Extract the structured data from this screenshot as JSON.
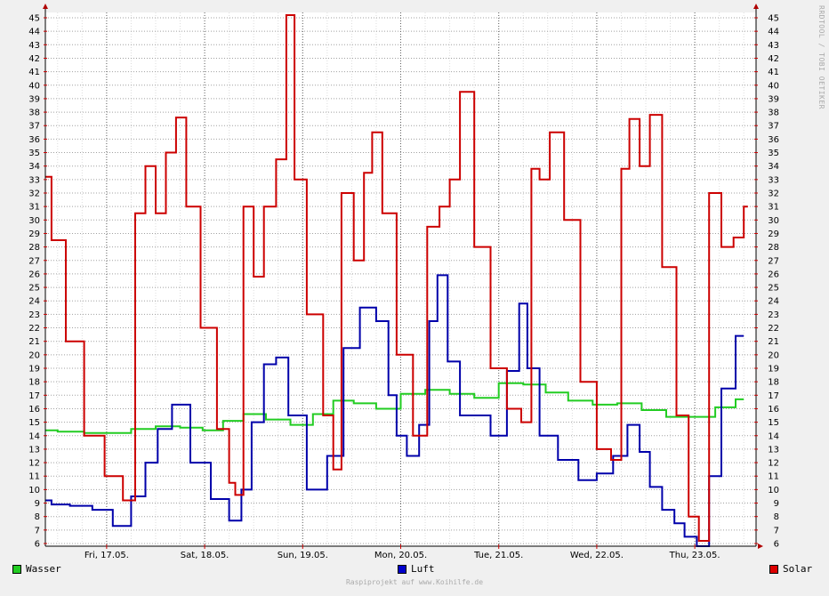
{
  "chart_data": {
    "type": "line",
    "ylim": [
      6,
      45
    ],
    "y_ticks": [
      6,
      7,
      8,
      9,
      10,
      11,
      12,
      13,
      14,
      15,
      16,
      17,
      18,
      19,
      20,
      21,
      22,
      23,
      24,
      25,
      26,
      27,
      28,
      29,
      30,
      31,
      32,
      33,
      34,
      35,
      36,
      37,
      38,
      39,
      40,
      41,
      42,
      43,
      44,
      45
    ],
    "x_range": [
      "2019-05-16T09:00",
      "2019-05-23T15:00"
    ],
    "x_ticks": [
      {
        "label": "Fri, 17.05.",
        "time": "2019-05-17T00:00"
      },
      {
        "label": "Sat, 18.05.",
        "time": "2019-05-18T00:00"
      },
      {
        "label": "Sun, 19.05.",
        "time": "2019-05-19T00:00"
      },
      {
        "label": "Mon, 20.05.",
        "time": "2019-05-20T00:00"
      },
      {
        "label": "Tue, 21.05.",
        "time": "2019-05-21T00:00"
      },
      {
        "label": "Wed, 22.05.",
        "time": "2019-05-22T00:00"
      },
      {
        "label": "Thu, 23.05.",
        "time": "2019-05-23T00:00"
      }
    ],
    "grid": true,
    "legend_position": "bottom",
    "series": [
      {
        "name": "Wasser",
        "color": "#22cc22",
        "x": [
          "2019-05-16T09:00",
          "2019-05-16T15:00",
          "2019-05-16T22:00",
          "2019-05-17T03:00",
          "2019-05-17T09:00",
          "2019-05-17T15:00",
          "2019-05-17T21:00",
          "2019-05-18T02:00",
          "2019-05-18T07:00",
          "2019-05-18T12:00",
          "2019-05-18T18:00",
          "2019-05-19T00:00",
          "2019-05-19T05:00",
          "2019-05-19T10:00",
          "2019-05-19T15:00",
          "2019-05-19T21:00",
          "2019-05-20T03:00",
          "2019-05-20T09:00",
          "2019-05-20T15:00",
          "2019-05-20T21:00",
          "2019-05-21T03:00",
          "2019-05-21T09:00",
          "2019-05-21T14:00",
          "2019-05-21T20:00",
          "2019-05-22T02:00",
          "2019-05-22T08:00",
          "2019-05-22T14:00",
          "2019-05-22T20:00",
          "2019-05-23T02:00",
          "2019-05-23T08:00",
          "2019-05-23T12:00"
        ],
        "values": [
          14.4,
          14.3,
          14.2,
          14.2,
          14.5,
          14.7,
          14.6,
          14.4,
          15.1,
          15.6,
          15.2,
          14.8,
          15.6,
          16.6,
          16.4,
          16.0,
          17.1,
          17.4,
          17.1,
          16.8,
          17.9,
          17.8,
          17.2,
          16.6,
          16.3,
          16.4,
          15.9,
          15.4,
          15.4,
          16.1,
          16.7
        ]
      },
      {
        "name": "Luft",
        "color": "#0000aa",
        "x": [
          "2019-05-16T09:00",
          "2019-05-16T12:00",
          "2019-05-16T18:00",
          "2019-05-16T23:00",
          "2019-05-17T04:00",
          "2019-05-17T08:00",
          "2019-05-17T11:00",
          "2019-05-17T14:00",
          "2019-05-17T18:00",
          "2019-05-17T23:00",
          "2019-05-18T04:00",
          "2019-05-18T08:00",
          "2019-05-18T10:00",
          "2019-05-18T13:00",
          "2019-05-18T16:00",
          "2019-05-18T19:00",
          "2019-05-18T22:00",
          "2019-05-19T04:00",
          "2019-05-19T08:00",
          "2019-05-19T12:00",
          "2019-05-19T16:00",
          "2019-05-19T20:00",
          "2019-05-19T22:00",
          "2019-05-20T00:00",
          "2019-05-20T03:00",
          "2019-05-20T06:00",
          "2019-05-20T08:00",
          "2019-05-20T10:00",
          "2019-05-20T13:00",
          "2019-05-20T16:00",
          "2019-05-20T20:00",
          "2019-05-21T00:00",
          "2019-05-21T04:00",
          "2019-05-21T06:00",
          "2019-05-21T08:00",
          "2019-05-21T12:00",
          "2019-05-21T17:00",
          "2019-05-21T22:00",
          "2019-05-22T02:00",
          "2019-05-22T06:00",
          "2019-05-22T09:00",
          "2019-05-22T12:00",
          "2019-05-22T14:00",
          "2019-05-22T18:00",
          "2019-05-22T20:00",
          "2019-05-22T23:00",
          "2019-05-23T02:00",
          "2019-05-23T05:00",
          "2019-05-23T08:00",
          "2019-05-23T12:00"
        ],
        "values": [
          9.2,
          8.9,
          8.8,
          8.5,
          7.3,
          9.5,
          12.0,
          14.5,
          16.3,
          12.0,
          9.3,
          7.7,
          10.0,
          15.0,
          19.3,
          19.8,
          15.5,
          10.0,
          12.5,
          20.5,
          23.5,
          22.5,
          17.0,
          14.0,
          12.5,
          14.8,
          22.5,
          25.9,
          19.5,
          15.5,
          15.5,
          14.0,
          18.8,
          23.8,
          19.0,
          14.0,
          12.2,
          10.7,
          11.2,
          12.5,
          14.8,
          12.8,
          10.2,
          8.5,
          7.5,
          6.5,
          5.8,
          11.0,
          17.5,
          21.4
        ]
      },
      {
        "name": "Solar",
        "color": "#cc0000",
        "x": [
          "2019-05-16T09:00",
          "2019-05-16T12:00",
          "2019-05-16T16:00",
          "2019-05-16T21:00",
          "2019-05-17T02:00",
          "2019-05-17T06:00",
          "2019-05-17T08:00",
          "2019-05-17T11:00",
          "2019-05-17T13:00",
          "2019-05-17T16:00",
          "2019-05-17T18:00",
          "2019-05-17T21:00",
          "2019-05-18T01:00",
          "2019-05-18T05:00",
          "2019-05-18T07:00",
          "2019-05-18T08:00",
          "2019-05-18T11:00",
          "2019-05-18T13:00",
          "2019-05-18T16:00",
          "2019-05-18T19:00",
          "2019-05-18T21:00",
          "2019-05-18T23:00",
          "2019-05-19T03:00",
          "2019-05-19T07:00",
          "2019-05-19T08:00",
          "2019-05-19T11:00",
          "2019-05-19T14:00",
          "2019-05-19T16:00",
          "2019-05-19T18:00",
          "2019-05-19T21:00",
          "2019-05-20T01:00",
          "2019-05-20T05:00",
          "2019-05-20T08:00",
          "2019-05-20T11:00",
          "2019-05-20T13:00",
          "2019-05-20T16:00",
          "2019-05-20T20:00",
          "2019-05-21T00:00",
          "2019-05-21T04:00",
          "2019-05-21T07:00",
          "2019-05-21T09:00",
          "2019-05-21T11:00",
          "2019-05-21T14:00",
          "2019-05-21T18:00",
          "2019-05-21T22:00",
          "2019-05-22T02:00",
          "2019-05-22T05:00",
          "2019-05-22T07:00",
          "2019-05-22T09:00",
          "2019-05-22T12:00",
          "2019-05-22T14:00",
          "2019-05-22T18:00",
          "2019-05-22T21:00",
          "2019-05-23T00:00",
          "2019-05-23T02:00",
          "2019-05-23T05:00",
          "2019-05-23T08:00",
          "2019-05-23T11:00",
          "2019-05-23T13:00"
        ],
        "values": [
          33.2,
          28.5,
          21.0,
          14.0,
          11.0,
          9.2,
          30.5,
          34.0,
          30.5,
          35.0,
          37.6,
          31.0,
          22.0,
          14.5,
          10.5,
          9.6,
          31.0,
          25.8,
          31.0,
          34.5,
          45.2,
          33.0,
          23.0,
          15.5,
          11.5,
          32.0,
          27.0,
          33.5,
          36.5,
          30.5,
          20.0,
          14.0,
          29.5,
          31.0,
          33.0,
          39.5,
          28.0,
          19.0,
          16.0,
          15.0,
          33.8,
          33.0,
          36.5,
          30.0,
          18.0,
          13.0,
          12.2,
          33.8,
          37.5,
          34.0,
          37.8,
          26.5,
          15.5,
          8.0,
          6.2,
          32.0,
          28.0,
          28.7,
          31.0
        ]
      }
    ]
  },
  "legend": [
    {
      "label": "Wasser",
      "color": "#22cc22"
    },
    {
      "label": "Luft",
      "color": "#0000cc"
    },
    {
      "label": "Solar",
      "color": "#dd0000"
    }
  ],
  "footer": "Raspiprojekt auf www.Koihilfe.de",
  "side_credit": "RRDTOOL / TOBI OETIKER"
}
